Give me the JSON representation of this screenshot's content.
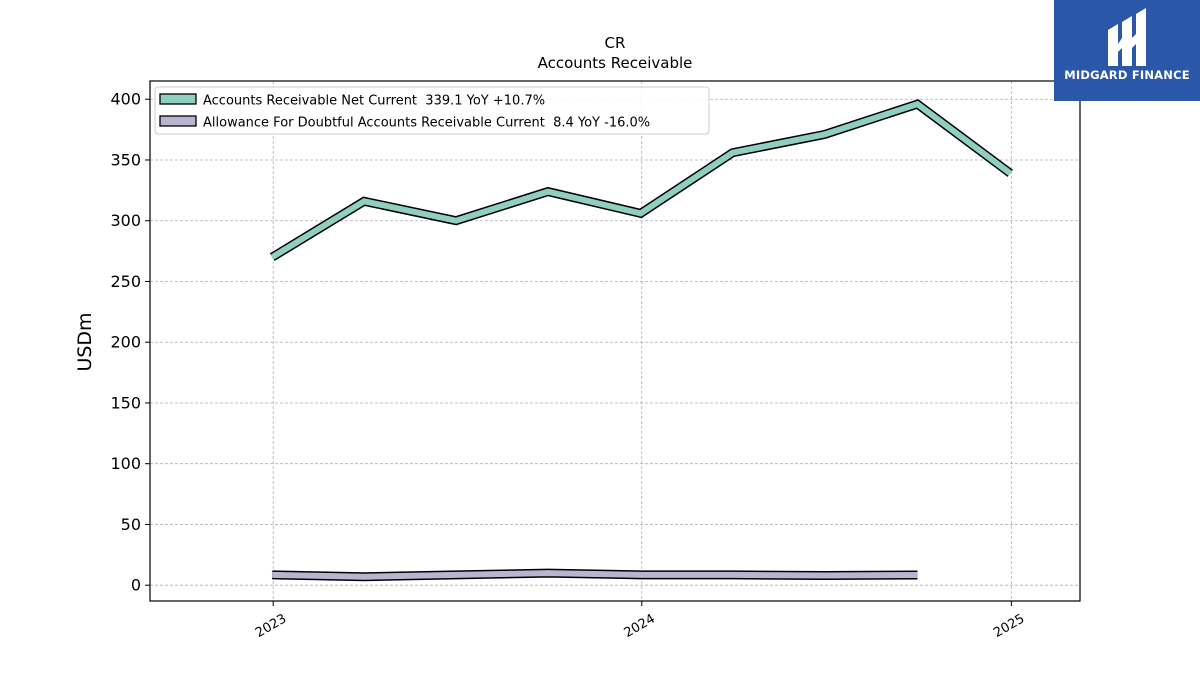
{
  "chart_data": {
    "type": "line",
    "title": "CR",
    "subtitle": "Accounts Receivable",
    "ylabel": "USDm",
    "xlabel": "",
    "ylim": [
      -13,
      415
    ],
    "xlim": [
      "2022-09-01",
      "2025-03-10"
    ],
    "yticks": [
      0,
      50,
      100,
      150,
      200,
      250,
      300,
      350,
      400
    ],
    "xticks": [
      {
        "date": "2023-01-01",
        "label": "2023"
      },
      {
        "date": "2024-01-01",
        "label": "2024"
      },
      {
        "date": "2025-01-01",
        "label": "2025"
      }
    ],
    "grid": true,
    "legend_position": "top-left",
    "series": [
      {
        "name": "Accounts Receivable Net Current  339.1 YoY +10.7%",
        "color": "#8fcfbf",
        "points": [
          {
            "x": "2022-12-31",
            "y": 270
          },
          {
            "x": "2023-04-01",
            "y": 316
          },
          {
            "x": "2023-07-01",
            "y": 300
          },
          {
            "x": "2023-09-30",
            "y": 324
          },
          {
            "x": "2023-12-31",
            "y": 306
          },
          {
            "x": "2024-03-31",
            "y": 356
          },
          {
            "x": "2024-06-30",
            "y": 371
          },
          {
            "x": "2024-09-30",
            "y": 396
          },
          {
            "x": "2024-12-31",
            "y": 339
          }
        ]
      },
      {
        "name": "Allowance For Doubtful Accounts Receivable Current  8.4 YoY -16.0%",
        "color": "#b8b4d2",
        "points": [
          {
            "x": "2022-12-31",
            "y": 8.5
          },
          {
            "x": "2023-04-01",
            "y": 7
          },
          {
            "x": "2023-07-01",
            "y": 8.5
          },
          {
            "x": "2023-09-30",
            "y": 10
          },
          {
            "x": "2023-12-31",
            "y": 8.5
          },
          {
            "x": "2024-03-31",
            "y": 8.5
          },
          {
            "x": "2024-06-30",
            "y": 8
          },
          {
            "x": "2024-09-30",
            "y": 8.4
          }
        ]
      }
    ]
  },
  "logo": {
    "text": "MIDGARD FINANCE",
    "color": "#2a57a8"
  }
}
